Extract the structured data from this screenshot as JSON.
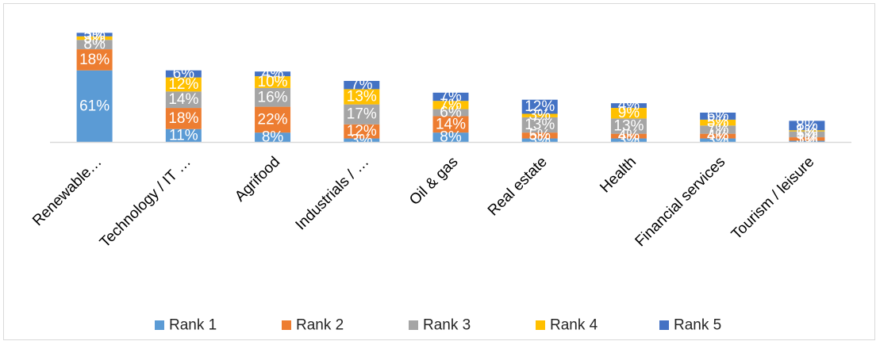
{
  "chart_data": {
    "type": "bar",
    "stacked": true,
    "categories": [
      "Renewable…",
      "Technology / IT …",
      "Agrifood",
      "Industrials / …",
      "Oil & gas",
      "Real estate",
      "Health",
      "Financial services",
      "Tourism / leisure"
    ],
    "series": [
      {
        "name": "Rank 1",
        "color": "#5B9BD5",
        "values": [
          61,
          11,
          8,
          3,
          8,
          3,
          3,
          3,
          1
        ],
        "labels": [
          "61%",
          "11%",
          "8%",
          "3%",
          "8%",
          "3%",
          "3%",
          "3%",
          "1%"
        ]
      },
      {
        "name": "Rank 2",
        "color": "#ED7D31",
        "values": [
          18,
          18,
          22,
          12,
          14,
          5,
          4,
          4,
          3
        ],
        "labels": [
          "18%",
          "18%",
          "22%",
          "12%",
          "14%",
          "5%",
          "4%",
          "4%",
          "3%"
        ]
      },
      {
        "name": "Rank 3",
        "color": "#A5A5A5",
        "values": [
          8,
          14,
          16,
          17,
          6,
          13,
          13,
          7,
          5
        ],
        "labels": [
          "8%",
          "14%",
          "16%",
          "17%",
          "6%",
          "13%",
          "13%",
          "7%",
          "5%"
        ]
      },
      {
        "name": "Rank 4",
        "color": "#FFC000",
        "values": [
          3,
          12,
          10,
          13,
          7,
          3,
          9,
          5,
          1
        ],
        "labels": [
          "3%",
          "12%",
          "10%",
          "13%",
          "7%",
          "3%",
          "9%",
          "5%",
          "1%"
        ]
      },
      {
        "name": "Rank 5",
        "color": "#4472C4",
        "values": [
          3,
          6,
          4,
          7,
          7,
          12,
          4,
          6,
          8
        ],
        "labels": [
          "3%",
          "6%",
          "4%",
          "7%",
          "7%",
          "12%",
          "4%",
          "6%",
          "8%"
        ]
      }
    ],
    "title": "",
    "xlabel": "",
    "ylabel": "",
    "ylim": [
      0,
      100
    ],
    "grid": false,
    "legend_position": "bottom"
  }
}
